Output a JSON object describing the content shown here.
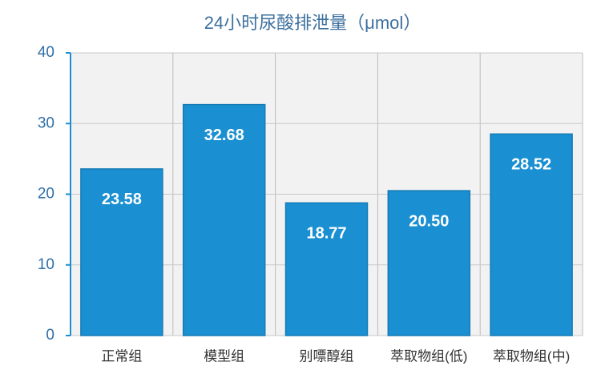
{
  "chart_data": {
    "type": "bar",
    "title": "24小时尿酸排泄量（μmol）",
    "categories": [
      "正常组",
      "模型组",
      "别嘌醇组",
      "萃取物组(低)",
      "萃取物组(中)"
    ],
    "values": [
      23.58,
      32.68,
      18.77,
      20.5,
      28.52
    ],
    "value_labels": [
      "23.58",
      "32.68",
      "18.77",
      "20.50",
      "28.52"
    ],
    "color": "#1a8fd1",
    "ylim": [
      0,
      40
    ],
    "yticks": [
      0,
      10,
      20,
      30,
      40
    ],
    "grid": true
  }
}
